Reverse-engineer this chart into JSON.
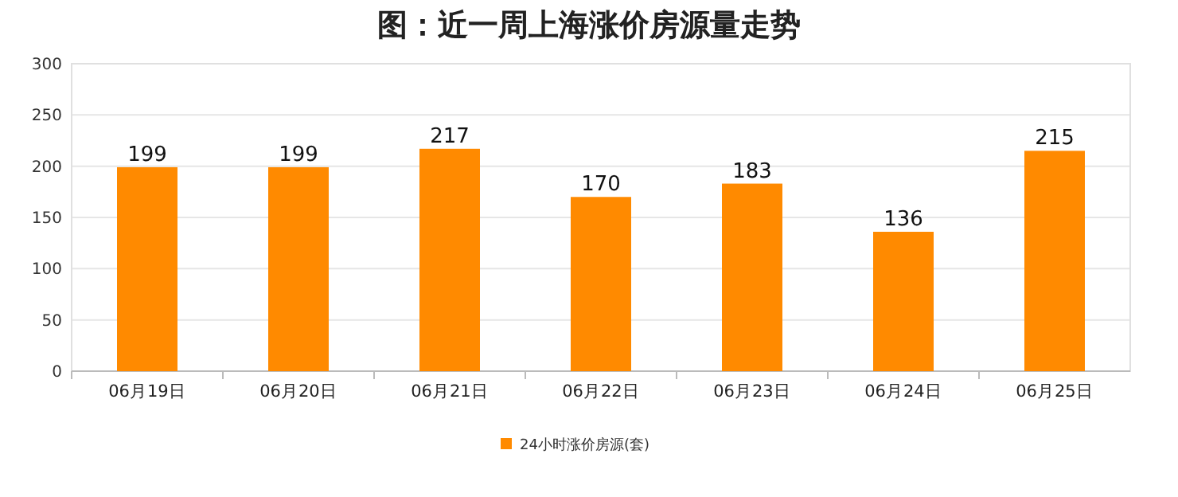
{
  "chart_data": {
    "type": "bar",
    "title": "图：近一周上海涨价房源量走势",
    "categories": [
      "06月19日",
      "06月20日",
      "06月21日",
      "06月22日",
      "06月23日",
      "06月24日",
      "06月25日"
    ],
    "series": [
      {
        "name": "24小时涨价房源(套)",
        "color": "#ff8a00",
        "values": [
          199,
          199,
          217,
          170,
          183,
          136,
          215
        ]
      }
    ],
    "ylim": [
      0,
      300
    ],
    "yticks": [
      0,
      50,
      100,
      150,
      200,
      250,
      300
    ],
    "grid": "y",
    "legend": "bottom",
    "data_labels": true
  }
}
